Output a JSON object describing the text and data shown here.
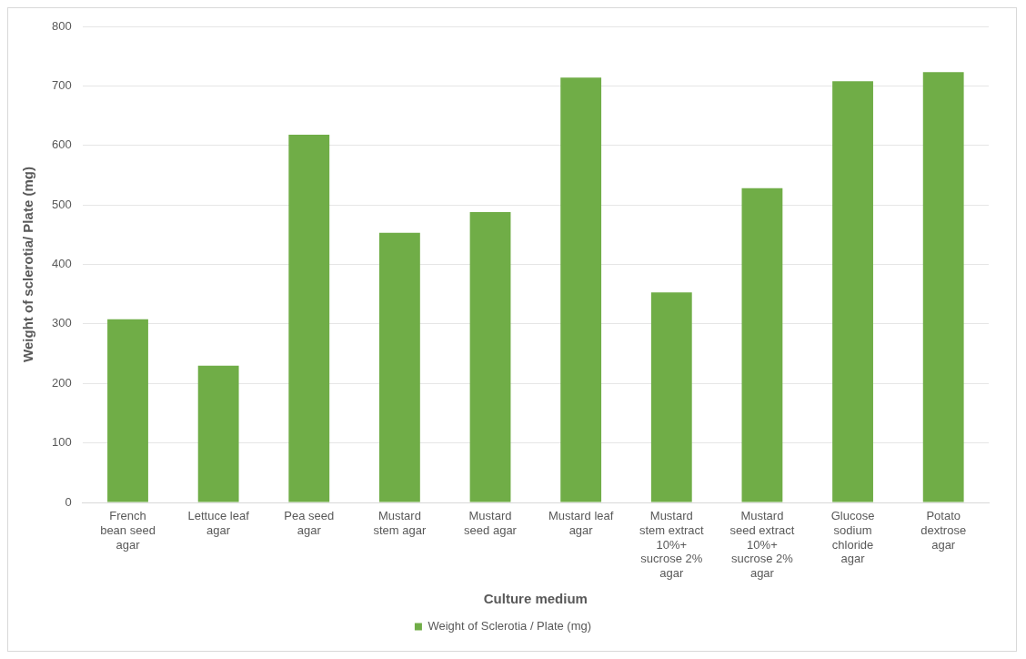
{
  "chart_data": {
    "type": "bar",
    "xlabel": "Culture medium",
    "ylabel": "Weight of sclerotia/ Plate (mg)",
    "categories": [
      "French bean seed agar",
      "Lettuce leaf agar",
      "Pea seed agar",
      "Mustard stem agar",
      "Mustard seed agar",
      "Mustard leaf agar",
      "Mustard stem extract 10%+ sucrose 2% agar",
      "Mustard seed extract 10%+ sucrose 2% agar",
      "Glucose sodium chloride agar",
      "Potato dextrose agar"
    ],
    "series": [
      {
        "name": "Weight of Sclerotia / Plate (mg)",
        "color": "#70ad47",
        "values": [
          308,
          230,
          618,
          453,
          488,
          714,
          353,
          528,
          708,
          723
        ]
      }
    ],
    "ylim": [
      0,
      800
    ],
    "yticks": [
      0,
      100,
      200,
      300,
      400,
      500,
      600,
      700,
      800
    ],
    "grid": "y",
    "legend": "bottom"
  }
}
